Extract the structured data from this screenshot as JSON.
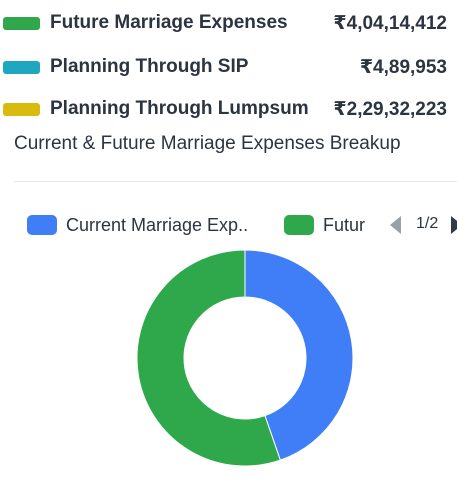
{
  "summary": {
    "items": [
      {
        "label": "Future Marriage Expenses",
        "value": "₹4,04,14,412",
        "color": "#2ea84a"
      },
      {
        "label": "Planning Through SIP",
        "value": "₹4,89,953",
        "color": "#1fa7c2"
      },
      {
        "label": "Planning Through Lumpsum",
        "value": "₹2,29,32,223",
        "color": "#d8bb0c"
      }
    ]
  },
  "chart_data": {
    "type": "pie",
    "title": "Current & Future Marriage Expenses Breakup",
    "donut": true,
    "legend": {
      "placement": "top",
      "entries": [
        {
          "label": "Current Marriage Exp..",
          "color": "#3f7ef7"
        },
        {
          "label": "Futur",
          "color": "#2ea84a"
        }
      ],
      "page_indicator": "1/2"
    },
    "slices": [
      {
        "share": 0.447,
        "color": "#3f7ef7"
      },
      {
        "share": 0.553,
        "color": "#2ea84a"
      }
    ]
  }
}
